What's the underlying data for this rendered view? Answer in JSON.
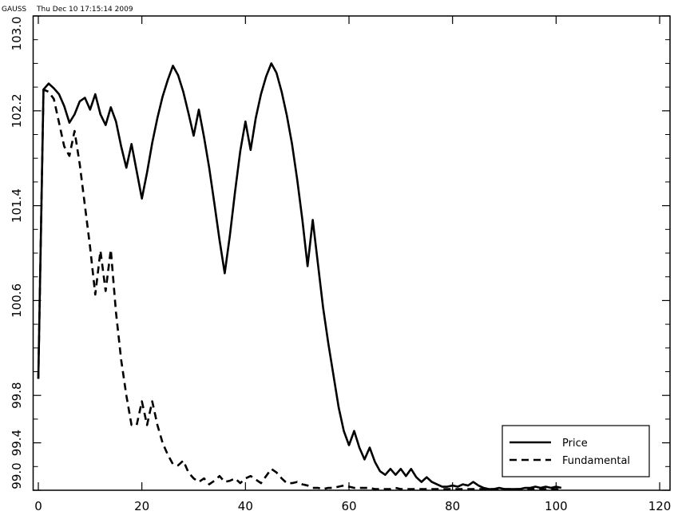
{
  "header": {
    "program": "GAUSS",
    "timestamp": "Thu Dec 10 17:15:14 2009"
  },
  "chart_data": {
    "type": "line",
    "x": [
      0,
      1,
      2,
      3,
      4,
      5,
      6,
      7,
      8,
      9,
      10,
      11,
      12,
      13,
      14,
      15,
      16,
      17,
      18,
      19,
      20,
      21,
      22,
      23,
      24,
      25,
      26,
      27,
      28,
      29,
      30,
      31,
      32,
      33,
      34,
      35,
      36,
      37,
      38,
      39,
      40,
      41,
      42,
      43,
      44,
      45,
      46,
      47,
      48,
      49,
      50,
      51,
      52,
      53,
      54,
      55,
      56,
      57,
      58,
      59,
      60,
      61,
      62,
      63,
      64,
      65,
      66,
      67,
      68,
      69,
      70,
      71,
      72,
      73,
      74,
      75,
      76,
      77,
      78,
      79,
      80,
      81,
      82,
      83,
      84,
      85,
      86,
      87,
      88,
      89,
      90,
      91,
      92,
      93,
      94,
      95,
      96,
      97,
      98,
      99,
      100,
      101
    ],
    "series": [
      {
        "name": "Price",
        "color": "#000000",
        "dash": "solid",
        "values": [
          99.94,
          102.38,
          102.43,
          102.39,
          102.34,
          102.24,
          102.1,
          102.17,
          102.28,
          102.31,
          102.21,
          102.34,
          102.17,
          102.08,
          102.23,
          102.11,
          101.9,
          101.72,
          101.92,
          101.69,
          101.46,
          101.68,
          101.93,
          102.14,
          102.32,
          102.46,
          102.58,
          102.5,
          102.36,
          102.18,
          101.99,
          102.21,
          101.98,
          101.72,
          101.42,
          101.11,
          100.83,
          101.15,
          101.52,
          101.86,
          102.11,
          101.87,
          102.14,
          102.34,
          102.49,
          102.6,
          102.52,
          102.36,
          102.16,
          101.92,
          101.62,
          101.28,
          100.89,
          101.28,
          100.91,
          100.54,
          100.24,
          99.97,
          99.7,
          99.5,
          99.38,
          99.5,
          99.36,
          99.26,
          99.36,
          99.24,
          99.16,
          99.13,
          99.18,
          99.13,
          99.18,
          99.12,
          99.18,
          99.11,
          99.07,
          99.11,
          99.07,
          99.05,
          99.03,
          99.03,
          99.04,
          99.03,
          99.05,
          99.04,
          99.07,
          99.04,
          99.02,
          99.01,
          99.01,
          99.02,
          99.01,
          99.01,
          99.01,
          99.01,
          99.02,
          99.02,
          99.03,
          99.02,
          99.03,
          99.02,
          99.03,
          99.02
        ]
      },
      {
        "name": "Fundamental",
        "color": "#000000",
        "dash": "dashed",
        "values": [
          99.94,
          102.38,
          102.36,
          102.3,
          102.1,
          101.9,
          101.82,
          102.03,
          101.75,
          101.4,
          101.05,
          100.65,
          101.02,
          100.68,
          101.03,
          100.5,
          100.1,
          99.8,
          99.55,
          99.55,
          99.75,
          99.55,
          99.75,
          99.55,
          99.4,
          99.3,
          99.22,
          99.21,
          99.25,
          99.15,
          99.1,
          99.07,
          99.1,
          99.05,
          99.08,
          99.12,
          99.07,
          99.08,
          99.1,
          99.06,
          99.1,
          99.12,
          99.09,
          99.06,
          99.12,
          99.18,
          99.15,
          99.1,
          99.06,
          99.06,
          99.07,
          99.05,
          99.04,
          99.02,
          99.02,
          99.01,
          99.02,
          99.02,
          99.03,
          99.04,
          99.03,
          99.02,
          99.02,
          99.02,
          99.02,
          99.01,
          99.01,
          99.01,
          99.01,
          99.02,
          99.01,
          99.01,
          99.01,
          99.01,
          99.01,
          99.01,
          99.01,
          99.01,
          99.01,
          99.01,
          99.01,
          99.01,
          99.01,
          99.01,
          99.01,
          99.01,
          99.01,
          99.01,
          99.01,
          99.01,
          99.01,
          99.01,
          99.01,
          99.01,
          99.01,
          99.01,
          99.01,
          99.01,
          99.01,
          99.01,
          99.01,
          99.01
        ]
      }
    ],
    "xlim": [
      -1,
      122
    ],
    "ylim": [
      99,
      103
    ],
    "xticks": [
      0,
      20,
      40,
      60,
      80,
      100,
      120
    ],
    "yticks": [
      {
        "value": 99,
        "label": "99.0"
      },
      99.4,
      99.8,
      100.6,
      101.4,
      102.2,
      {
        "value": 103,
        "label": "103.0"
      }
    ],
    "yminorticks": [
      99.2,
      99.6,
      100,
      100.2,
      100.4,
      100.8,
      101,
      101.2,
      101.6,
      101.8,
      102,
      102.4,
      102.6,
      102.8
    ],
    "legend": "lower right"
  }
}
